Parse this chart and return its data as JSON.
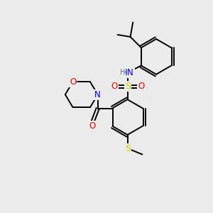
{
  "background_color": "#ebebeb",
  "atom_colors": {
    "C": "#000000",
    "H": "#607878",
    "N": "#0000ee",
    "O": "#ee0000",
    "S": "#cccc00"
  },
  "figsize": [
    3.0,
    3.0
  ],
  "dpi": 100,
  "lw": 1.4,
  "fs": 8.5,
  "fs_small": 7.0
}
